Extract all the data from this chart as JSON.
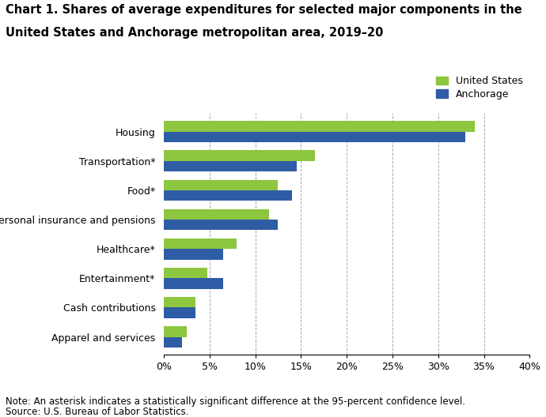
{
  "title_line1": "Chart 1. Shares of average expenditures for selected major components in the",
  "title_line2": "United States and Anchorage metropolitan area, 2019–20",
  "categories": [
    "Apparel and services",
    "Cash contributions",
    "Entertainment*",
    "Healthcare*",
    "Personal insurance and pensions",
    "Food*",
    "Transportation*",
    "Housing"
  ],
  "us_values": [
    2.5,
    3.5,
    4.8,
    8.0,
    11.5,
    12.5,
    16.5,
    34.0
  ],
  "anchorage_values": [
    2.0,
    3.5,
    6.5,
    6.5,
    12.5,
    14.0,
    14.5,
    33.0
  ],
  "us_color": "#8DC63F",
  "anchorage_color": "#2E5DA6",
  "legend_labels": [
    "United States",
    "Anchorage"
  ],
  "xlim": [
    0,
    40
  ],
  "xtick_values": [
    0,
    5,
    10,
    15,
    20,
    25,
    30,
    35,
    40
  ],
  "xtick_labels": [
    "0%",
    "5%",
    "10%",
    "15%",
    "20%",
    "25%",
    "30%",
    "35%",
    "40%"
  ],
  "note_line1": "Note: An asterisk indicates a statistically significant difference at the 95-percent confidence level.",
  "note_line2": "Source: U.S. Bureau of Labor Statistics.",
  "background_color": "#ffffff",
  "bar_height": 0.36,
  "grid_color": "#aaaaaa",
  "title_fontsize": 10.5,
  "axis_fontsize": 9,
  "note_fontsize": 8.5
}
